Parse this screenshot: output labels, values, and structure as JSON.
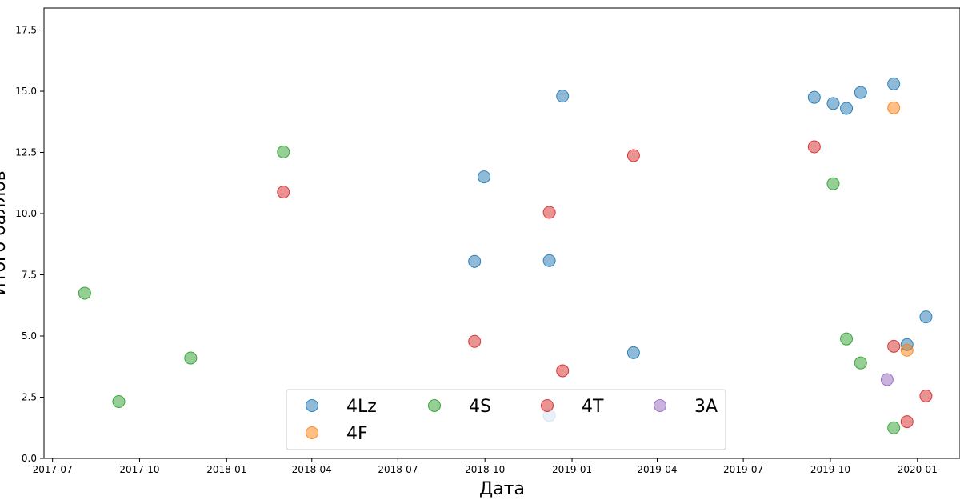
{
  "chart_data": {
    "type": "scatter",
    "title": "",
    "xlabel": "Дата",
    "ylabel": "Итого баллов",
    "x_axis_type": "date",
    "xlim": [
      "2017-06-22",
      "2020-02-15"
    ],
    "ylim": [
      0,
      18.4
    ],
    "x_ticks": [
      "2017-07",
      "2017-10",
      "2018-01",
      "2018-04",
      "2018-07",
      "2018-10",
      "2019-01",
      "2019-04",
      "2019-07",
      "2019-10",
      "2020-01"
    ],
    "y_ticks": [
      "0.0",
      "2.5",
      "5.0",
      "7.5",
      "10.0",
      "12.5",
      "15.0",
      "17.5"
    ],
    "grid": false,
    "legend_placement": "lower-center",
    "series": [
      {
        "name": "4Lz",
        "color": "#1f77b4",
        "points": [
          {
            "x": "2018-09-20",
            "y": 8.05
          },
          {
            "x": "2018-09-30",
            "y": 11.5
          },
          {
            "x": "2018-12-08",
            "y": 8.08
          },
          {
            "x": "2018-12-08",
            "y": 1.75
          },
          {
            "x": "2018-12-22",
            "y": 14.8
          },
          {
            "x": "2019-03-07",
            "y": 4.32
          },
          {
            "x": "2019-09-14",
            "y": 14.75
          },
          {
            "x": "2019-10-04",
            "y": 14.5
          },
          {
            "x": "2019-10-18",
            "y": 14.3
          },
          {
            "x": "2019-11-02",
            "y": 14.95
          },
          {
            "x": "2019-12-07",
            "y": 15.3
          },
          {
            "x": "2019-12-21",
            "y": 4.65
          },
          {
            "x": "2020-01-10",
            "y": 5.78
          }
        ]
      },
      {
        "name": "4F",
        "color": "#ff7f0e",
        "points": [
          {
            "x": "2019-12-07",
            "y": 14.32
          },
          {
            "x": "2019-12-21",
            "y": 4.42
          }
        ]
      },
      {
        "name": "4S",
        "color": "#2ca02c",
        "points": [
          {
            "x": "2017-08-04",
            "y": 6.75
          },
          {
            "x": "2017-09-09",
            "y": 2.32
          },
          {
            "x": "2017-11-24",
            "y": 4.1
          },
          {
            "x": "2018-03-02",
            "y": 12.52
          },
          {
            "x": "2019-10-04",
            "y": 11.22
          },
          {
            "x": "2019-10-18",
            "y": 4.88
          },
          {
            "x": "2019-11-02",
            "y": 3.9
          },
          {
            "x": "2019-12-07",
            "y": 1.25
          }
        ]
      },
      {
        "name": "4T",
        "color": "#d62728",
        "points": [
          {
            "x": "2018-03-02",
            "y": 10.88
          },
          {
            "x": "2018-09-20",
            "y": 4.78
          },
          {
            "x": "2018-12-08",
            "y": 10.05
          },
          {
            "x": "2018-12-22",
            "y": 3.58
          },
          {
            "x": "2019-03-07",
            "y": 12.37
          },
          {
            "x": "2019-09-14",
            "y": 12.73
          },
          {
            "x": "2019-12-07",
            "y": 4.58
          },
          {
            "x": "2019-12-21",
            "y": 1.5
          },
          {
            "x": "2020-01-10",
            "y": 2.55
          }
        ]
      },
      {
        "name": "3A",
        "color": "#9467bd",
        "points": [
          {
            "x": "2019-11-30",
            "y": 3.22
          }
        ]
      }
    ],
    "legend_order": [
      "4Lz",
      "4S",
      "4T",
      "3A",
      "4F"
    ]
  }
}
